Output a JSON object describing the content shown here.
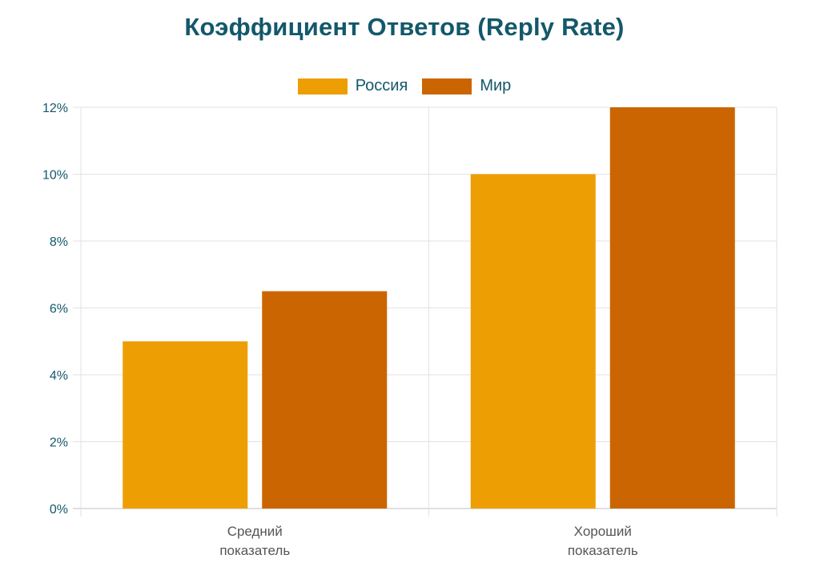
{
  "chart_data": {
    "type": "bar",
    "title": "Коэффициент Ответов (Reply Rate)",
    "categories": [
      [
        "Средний",
        "показатель"
      ],
      [
        "Хороший",
        "показатель"
      ]
    ],
    "series": [
      {
        "name": "Россия",
        "values": [
          5,
          10
        ],
        "color": "#ed9e02"
      },
      {
        "name": "Мир",
        "values": [
          6.5,
          12
        ],
        "color": "#cb6501"
      }
    ],
    "ylim": [
      0,
      12
    ],
    "yticks": [
      0,
      2,
      4,
      6,
      8,
      10,
      12
    ],
    "ytick_suffix": "%",
    "grid": true,
    "legend_position": "top-center",
    "xlabel": "",
    "ylabel": ""
  }
}
